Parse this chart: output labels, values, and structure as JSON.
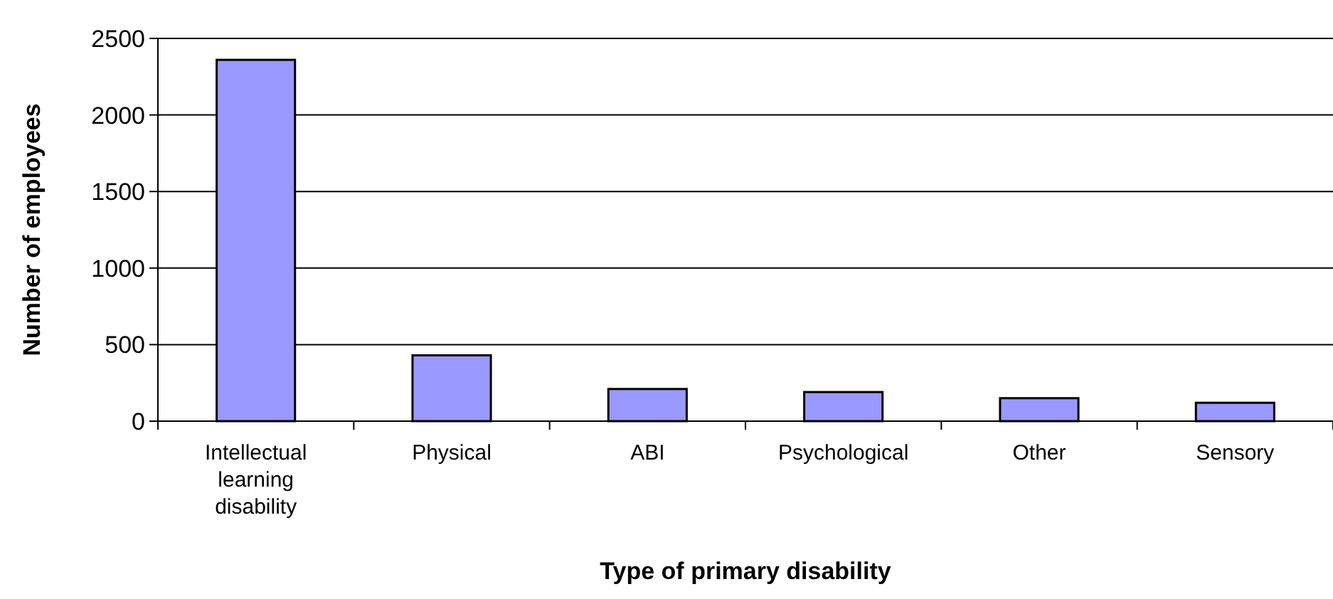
{
  "chart_data": {
    "type": "bar",
    "xlabel": "Type of primary disability",
    "ylabel": "Number of employees",
    "categories": [
      "Intellectual learning disability",
      "Physical",
      "ABI",
      "Psychological",
      "Other",
      "Sensory"
    ],
    "values": [
      2360,
      430,
      210,
      190,
      150,
      120
    ],
    "color": "#9999ff",
    "ylim": [
      0,
      2500
    ],
    "yticks": [
      0,
      500,
      1000,
      1500,
      2000,
      2500
    ],
    "grid": "y"
  }
}
